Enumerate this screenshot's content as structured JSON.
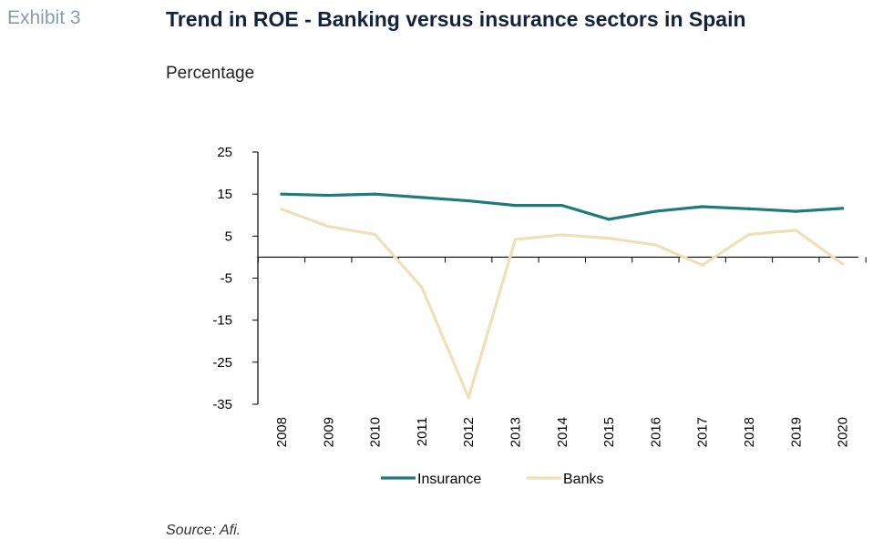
{
  "header": {
    "exhibit_label": "Exhibit 3",
    "title": "Trend in ROE - Banking versus insurance sectors in Spain",
    "subtitle": "Percentage"
  },
  "footer": {
    "source": "Source: Afi."
  },
  "chart_data": {
    "type": "line",
    "title": "Trend in ROE - Banking versus insurance sectors in Spain",
    "ylabel": "Percentage",
    "xlabel": "",
    "x": [
      "2008",
      "2009",
      "2010",
      "2011",
      "2012",
      "2013",
      "2014",
      "2015",
      "2016",
      "2017",
      "2018",
      "2019",
      "2020"
    ],
    "ylim": [
      -35,
      25
    ],
    "yticks": [
      25,
      15,
      5,
      -5,
      -15,
      -25,
      -35
    ],
    "grid": false,
    "legend_position": "bottom",
    "series": [
      {
        "name": "Insurance",
        "color": "#1e7b7b",
        "values": [
          15,
          14.7,
          15,
          14.2,
          13.4,
          12.3,
          12.3,
          9,
          10.9,
          12,
          11.5,
          10.9,
          11.6
        ]
      },
      {
        "name": "Banks",
        "color": "#efe0b8",
        "values": [
          11.4,
          7.3,
          5.4,
          -7.2,
          -33.4,
          4.2,
          5.3,
          4.5,
          2.9,
          -1.9,
          5.4,
          6.4,
          -1.6
        ]
      }
    ]
  }
}
